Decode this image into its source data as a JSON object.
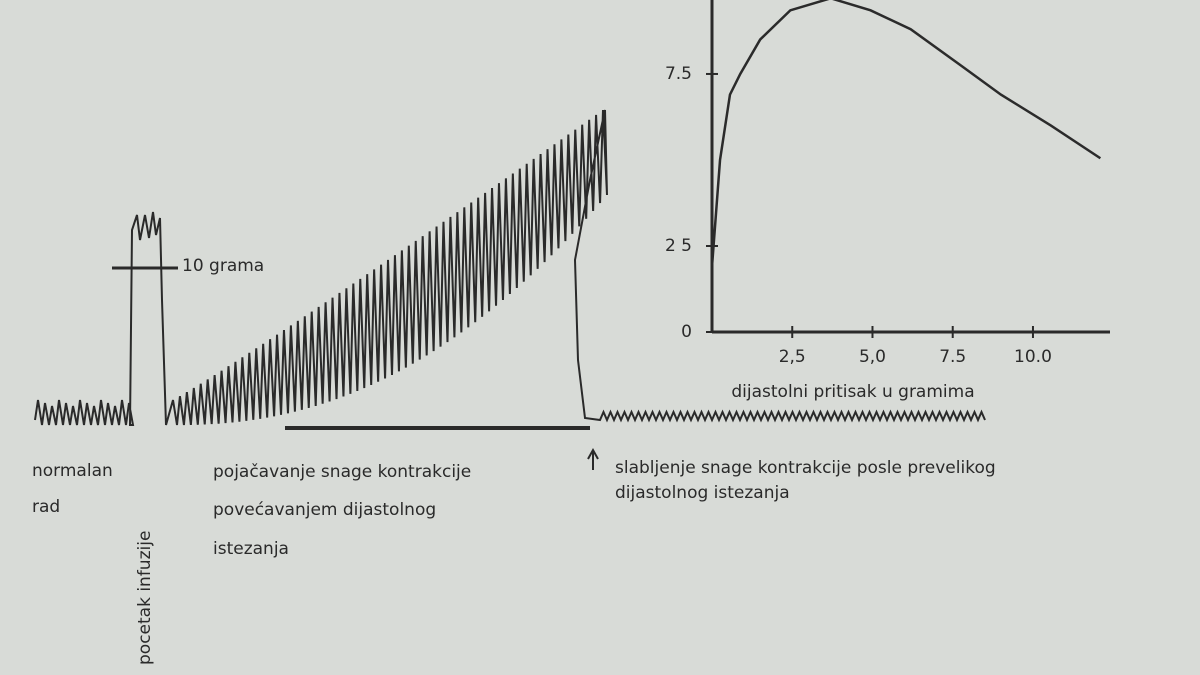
{
  "chart_data": {
    "type": "line",
    "xlabel": "dijastolni pritisak u gramima",
    "x": [
      0,
      0.25,
      0.56,
      0.88,
      1.5,
      2.44,
      3.7,
      4.94,
      6.19,
      7.75,
      9.0,
      10.56,
      12.1
    ],
    "values": [
      1.9,
      5.0,
      6.9,
      7.5,
      8.5,
      9.35,
      9.7,
      9.35,
      8.8,
      7.75,
      6.9,
      6.0,
      5.05
    ],
    "color": "#2b2b2b",
    "xlim": [
      0,
      12.4
    ],
    "ylim": [
      0,
      9.65
    ],
    "xticks": [
      {
        "value": 2.5,
        "label": "2,5"
      },
      {
        "value": 5.0,
        "label": "5,0"
      },
      7.5,
      {
        "value": 10.0,
        "label": "10.0"
      }
    ],
    "yticks": [
      0,
      {
        "value": 2.5,
        "label": "2 5"
      },
      7.5
    ]
  },
  "annotations": {
    "scale": "10 grama",
    "normal": [
      "normalan",
      "rad"
    ],
    "infusion": "pocetak infuzije",
    "increase": [
      "pojačavanje snage kontrakcije",
      "povećavanjem dijastolnog",
      "istezanja"
    ],
    "decrease": [
      "slabljenje snage kontrakcije posle prevelikog",
      "dijastolnog istezanja"
    ]
  }
}
